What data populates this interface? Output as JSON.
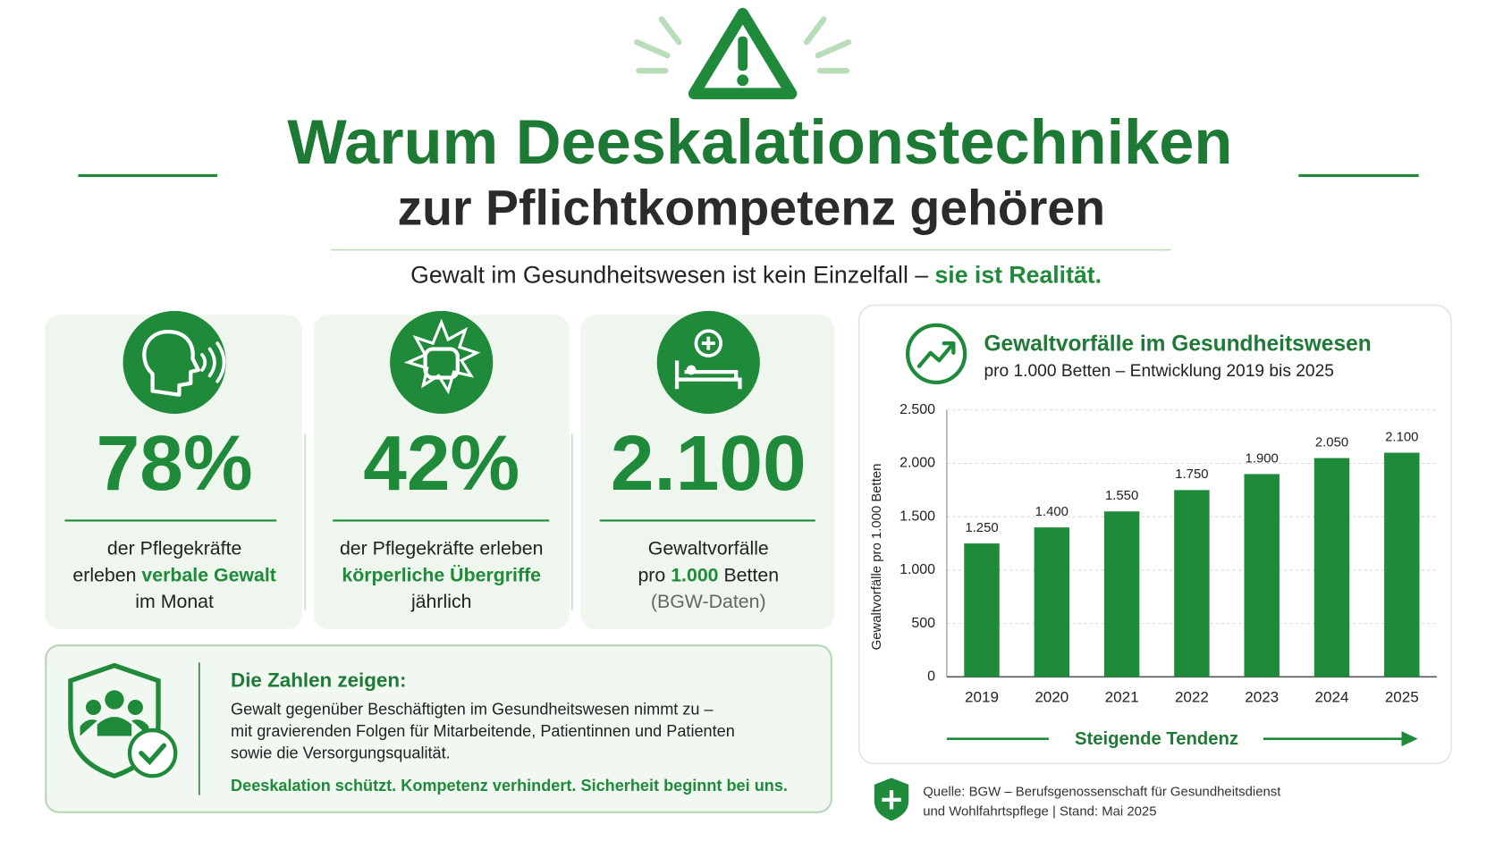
{
  "header": {
    "title_line1": "Warum Deeskalationstechniken",
    "title_line2": "zur Pflichtkompetenz gehören",
    "subtitle": "Gewalt im Gesundheitswesen ist kein Einzelfall – ",
    "subtitle_emphasis": "sie ist Realität."
  },
  "stats": [
    {
      "value": "78%",
      "lines": [
        [
          {
            "text": "der Pflegekräfte"
          }
        ],
        [
          {
            "text": "erleben "
          },
          {
            "text": "verbale Gewalt",
            "em": true
          }
        ],
        [
          {
            "text": "im Monat"
          }
        ]
      ]
    },
    {
      "value": "42%",
      "lines": [
        [
          {
            "text": "der Pflegekräfte erleben"
          }
        ],
        [
          {
            "text": "körperliche Übergriffe",
            "em": true
          }
        ],
        [
          {
            "text": "jährlich"
          }
        ]
      ]
    },
    {
      "value": "2.100",
      "lines": [
        [
          {
            "text": "Gewaltvorfälle"
          }
        ],
        [
          {
            "text": "pro "
          },
          {
            "text": "1.000",
            "em": true
          },
          {
            "text": " Betten"
          }
        ],
        [
          {
            "text": "(BGW-Daten)",
            "muted": true
          }
        ]
      ]
    }
  ],
  "info": {
    "heading": "Die Zahlen zeigen:",
    "body": [
      "Gewalt gegenüber Beschäftigten im Gesundheitswesen nimmt zu –",
      "mit gravierenden Folgen für Mitarbeitende, Patientinnen und Patienten",
      "sowie die Versorgungsqualität."
    ],
    "closing": "Deeskalation schützt. Kompetenz verhindert. Sicherheit beginnt bei uns."
  },
  "chart_data": {
    "type": "bar",
    "title": "Gewaltvorfälle im Gesundheitswesen",
    "subtitle": "pro 1.000 Betten – Entwicklung 2019 bis 2025",
    "ylabel": "Gewaltvorfälle pro 1.000 Betten",
    "categories": [
      "2019",
      "2020",
      "2021",
      "2022",
      "2023",
      "2024",
      "2025"
    ],
    "values": [
      1250,
      1400,
      1550,
      1750,
      1900,
      2050,
      2100
    ],
    "value_labels": [
      "1.250",
      "1.400",
      "1.550",
      "1.750",
      "1.900",
      "2.050",
      "2.100"
    ],
    "color": "#1e8a3a",
    "ylim": [
      0,
      2500
    ],
    "yticks": [
      0,
      500,
      {
        "value": 1000,
        "label": "1.000"
      },
      {
        "value": 1500,
        "label": "1.500"
      },
      {
        "value": 2000,
        "label": "2.000"
      },
      {
        "value": 2500,
        "label": "2.500"
      }
    ],
    "grid": true,
    "trend_label": "Steigende Tendenz"
  },
  "source": [
    "Quelle: BGW – Berufsgenossenschaft für Gesundheitsdienst",
    "und Wohlfahrtspflege | Stand: Mai 2025"
  ]
}
